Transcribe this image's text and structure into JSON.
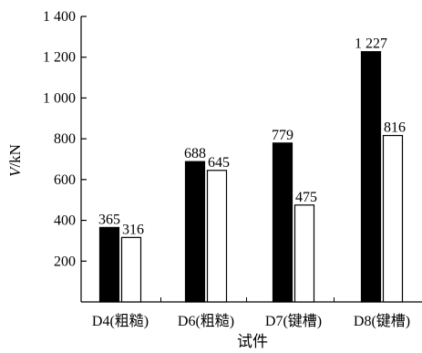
{
  "chart_data": {
    "type": "bar",
    "categories": [
      "D4(粗糙)",
      "D6(粗糙)",
      "D7(键槽)",
      "D8(键槽)"
    ],
    "series": [
      {
        "values": [
          365,
          688,
          779,
          1227
        ],
        "labels": [
          "365",
          "688",
          "779",
          "1 227"
        ],
        "color": "#000000"
      },
      {
        "values": [
          316,
          645,
          475,
          816
        ],
        "labels": [
          "316",
          "645",
          "475",
          "816"
        ],
        "color": "#ffffff"
      }
    ],
    "ylim": [
      0,
      1400
    ],
    "yticks": [
      200,
      400,
      600,
      800,
      1000,
      1200,
      1400
    ],
    "ytick_labels": [
      "200",
      "400",
      "600",
      "800",
      "1 000",
      "1 200",
      "1 400"
    ],
    "ylabel_italic": "V",
    "ylabel_rest": "/kN",
    "xlabel": "试件",
    "grid": false
  }
}
